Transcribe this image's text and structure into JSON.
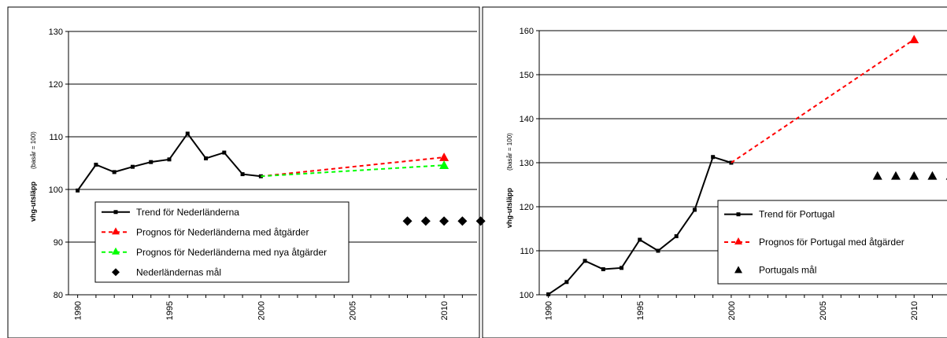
{
  "chart_data": [
    {
      "type": "line",
      "title": "",
      "xlabel": "",
      "ylabel": "vhg-utsläpp",
      "ylabel_sub": "(basår = 100)",
      "xlim": [
        1989.5,
        2011.8
      ],
      "ylim": [
        80,
        130
      ],
      "y_ticks": [
        "80",
        "90",
        "100",
        "110",
        "120",
        "130"
      ],
      "x_ticks": [
        "1990",
        "1995",
        "2000",
        "2005",
        "2010"
      ],
      "grid": true,
      "legend_position": "bottom-left",
      "series": [
        {
          "name": "Trend för Nederländerna",
          "style": "solid",
          "color": "#000000",
          "marker": "square",
          "x": [
            1990,
            1991,
            1992,
            1993,
            1994,
            1995,
            1996,
            1997,
            1998,
            1999,
            2000
          ],
          "y": [
            99.8,
            104.7,
            103.3,
            104.3,
            105.2,
            105.7,
            110.6,
            105.9,
            107.0,
            102.9,
            102.5
          ]
        },
        {
          "name": "Prognos för Nederländerna med åtgärder",
          "style": "dashed",
          "color": "#ff0000",
          "marker": "triangle",
          "x": [
            2000,
            2010
          ],
          "y": [
            102.5,
            106.1
          ]
        },
        {
          "name": "Prognos för Nederländerna med nya åtgärder",
          "style": "dashed",
          "color": "#00ff00",
          "marker": "triangle",
          "x": [
            2000,
            2010
          ],
          "y": [
            102.5,
            104.6
          ]
        },
        {
          "name": "Nederländernas mål",
          "style": "markers",
          "color": "#000000",
          "marker": "diamond",
          "x": [
            2008,
            2009,
            2010,
            2011,
            2012
          ],
          "y": [
            94,
            94,
            94,
            94,
            94
          ]
        }
      ]
    },
    {
      "type": "line",
      "title": "",
      "xlabel": "",
      "ylabel": "vhg-utsläpp",
      "ylabel_sub": "(basår = 100)",
      "xlim": [
        1989.5,
        2011.8
      ],
      "ylim": [
        100,
        160
      ],
      "y_ticks": [
        "100",
        "110",
        "120",
        "130",
        "140",
        "150",
        "160"
      ],
      "x_ticks": [
        "1990",
        "1995",
        "2000",
        "2005",
        "2010"
      ],
      "grid": true,
      "legend_position": "bottom-right",
      "series": [
        {
          "name": "Trend för Portugal",
          "style": "solid",
          "color": "#000000",
          "marker": "square",
          "x": [
            1990,
            1991,
            1992,
            1993,
            1994,
            1995,
            1996,
            1997,
            1998,
            1999,
            2000
          ],
          "y": [
            100.1,
            102.9,
            107.7,
            105.8,
            106.1,
            112.5,
            110.0,
            113.3,
            119.3,
            131.3,
            130.0
          ]
        },
        {
          "name": "Prognos för Portugal med åtgärder",
          "style": "dashed",
          "color": "#ff0000",
          "marker": "triangle",
          "x": [
            2000,
            2010
          ],
          "y": [
            130.0,
            158.0
          ]
        },
        {
          "name": "Portugals mål",
          "style": "markers",
          "color": "#000000",
          "marker": "triangle",
          "x": [
            2008,
            2009,
            2010,
            2011,
            2012
          ],
          "y": [
            127,
            127,
            127,
            127,
            127
          ]
        }
      ]
    }
  ]
}
